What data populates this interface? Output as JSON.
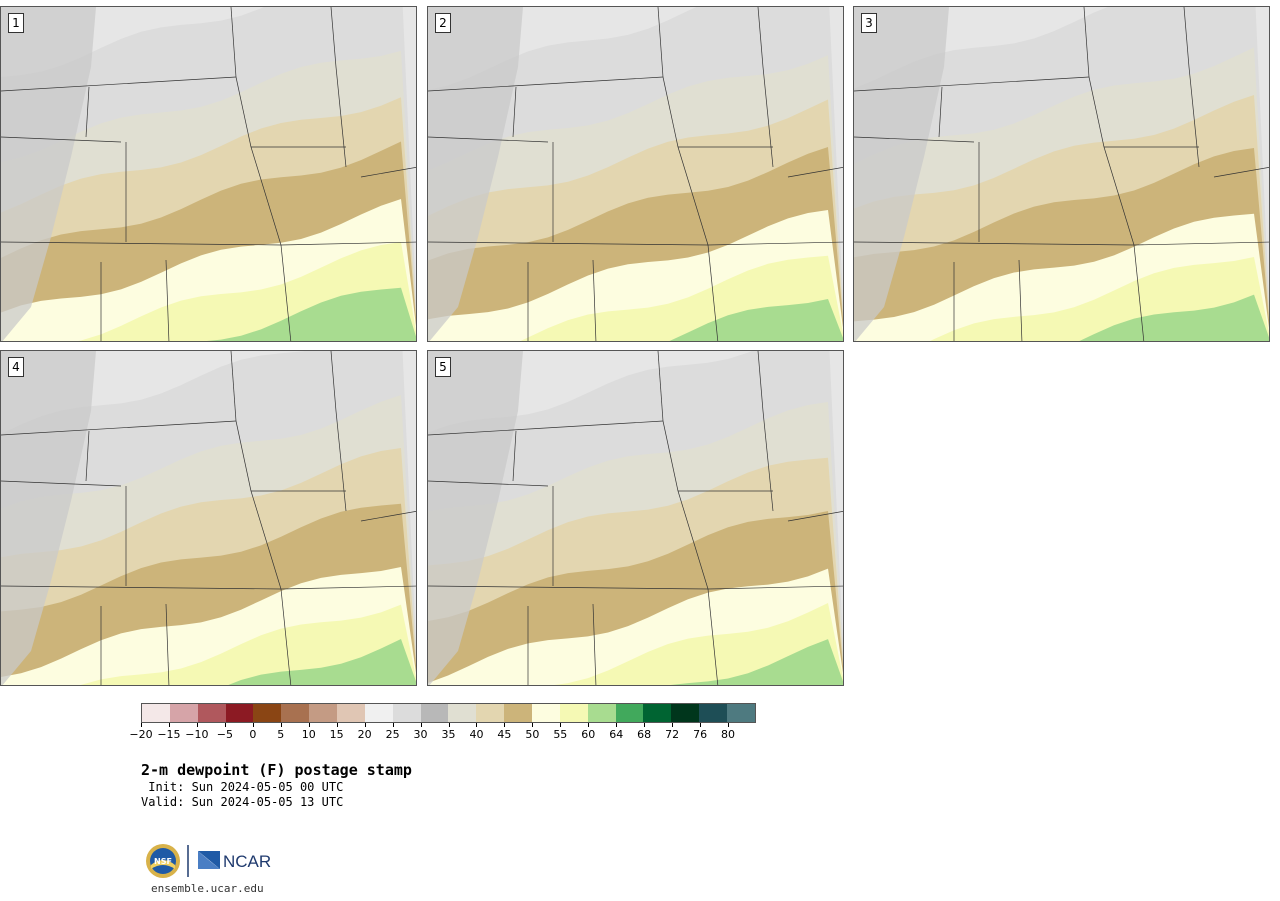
{
  "panels": [
    {
      "label": "1"
    },
    {
      "label": "2"
    },
    {
      "label": "3"
    },
    {
      "label": "4"
    },
    {
      "label": "5"
    }
  ],
  "colorbar": {
    "colors": [
      "#f4e8e8",
      "#d6a4a8",
      "#b0585d",
      "#8c1a23",
      "#8a4514",
      "#a87150",
      "#c49b84",
      "#e0c6b4",
      "#f0f0f0",
      "#dcdcdc",
      "#b8b8b8",
      "#e0dfd2",
      "#e3d6b0",
      "#ccb47a",
      "#fdfde0",
      "#f5f9b4",
      "#a8dc90",
      "#41a95c",
      "#006432",
      "#00361c",
      "#1e4e56",
      "#4e7a80"
    ],
    "tick_labels": [
      "−20",
      "−15",
      "−10",
      "−5",
      "0",
      "5",
      "10",
      "15",
      "20",
      "25",
      "30",
      "35",
      "40",
      "45",
      "50",
      "55",
      "60",
      "64",
      "68",
      "72",
      "76",
      "80"
    ]
  },
  "title": "2-m dewpoint (F) postage stamp",
  "init": " Init: Sun 2024-05-05 00 UTC",
  "valid": "Valid: Sun 2024-05-05 13 UTC",
  "logos": {
    "nsf": "NSF",
    "ncar": "NCAR"
  },
  "url": "ensemble.ucar.edu"
}
